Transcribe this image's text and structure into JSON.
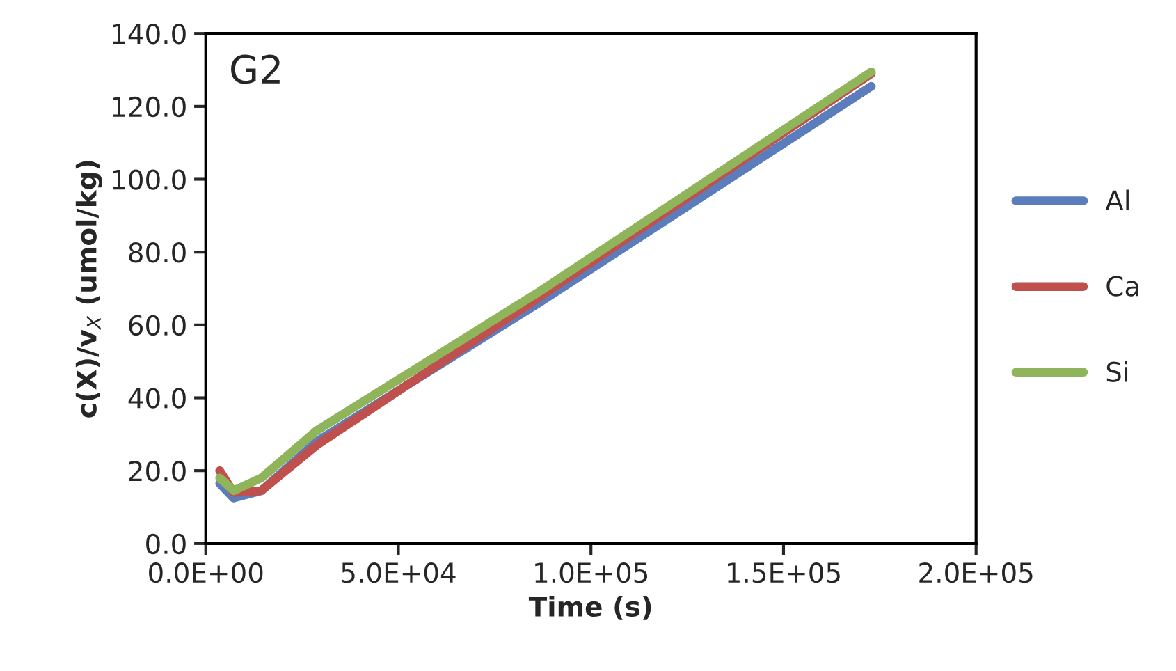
{
  "chart_data": {
    "type": "line",
    "xlabel": "Time (s)",
    "ylabel": "c(X)/v$_{X}$ (umol/kg)",
    "annotations": [
      "G2"
    ],
    "x": [
      3600,
      7200,
      14400,
      28800,
      86400,
      172800
    ],
    "series": [
      {
        "name": "Al",
        "color": "#5b7dbc",
        "values": [
          16.5,
          12.5,
          14.5,
          28,
          66,
          125.5
        ]
      },
      {
        "name": "Ca",
        "color": "#c0504d",
        "values": [
          20,
          14,
          14.5,
          27,
          67.5,
          129
        ]
      },
      {
        "name": "Si",
        "color": "#8fb45a",
        "values": [
          18,
          14.5,
          18,
          31,
          69,
          129.5
        ]
      }
    ],
    "xlim": [
      0,
      200000
    ],
    "xticks": [
      {
        "value": 0,
        "label": "0.0E+00"
      },
      {
        "value": 50000,
        "label": "5.0E+04"
      },
      {
        "value": 100000,
        "label": "1.0E+05"
      },
      {
        "value": 150000,
        "label": "1.5E+05"
      },
      {
        "value": 200000,
        "label": "2.0E+05"
      }
    ],
    "ylim": [
      0,
      140
    ],
    "yticks": [
      {
        "value": 0,
        "label": "0.0"
      },
      {
        "value": 20,
        "label": "20.0"
      },
      {
        "value": 40,
        "label": "40.0"
      },
      {
        "value": 60,
        "label": "60.0"
      },
      {
        "value": 80,
        "label": "80.0"
      },
      {
        "value": 100,
        "label": "100.0"
      },
      {
        "value": 120,
        "label": "120.0"
      },
      {
        "value": 140,
        "label": "140.0"
      }
    ],
    "grid": false,
    "legend": "right",
    "marker": "none",
    "line_style": "solid"
  }
}
